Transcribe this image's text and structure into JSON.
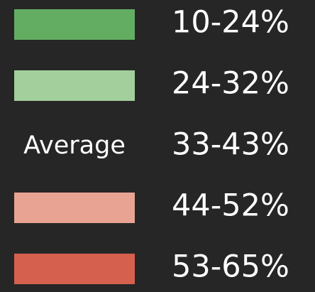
{
  "legend": {
    "items": [
      {
        "color": "#63ad62",
        "label": "10-24%"
      },
      {
        "color": "#a2cf9c",
        "label": "24-32%"
      },
      {
        "swatch_label": "Average",
        "label": "33-43%"
      },
      {
        "color": "#e8a393",
        "label": "44-52%"
      },
      {
        "color": "#d6604e",
        "label": "53-65%"
      }
    ]
  }
}
